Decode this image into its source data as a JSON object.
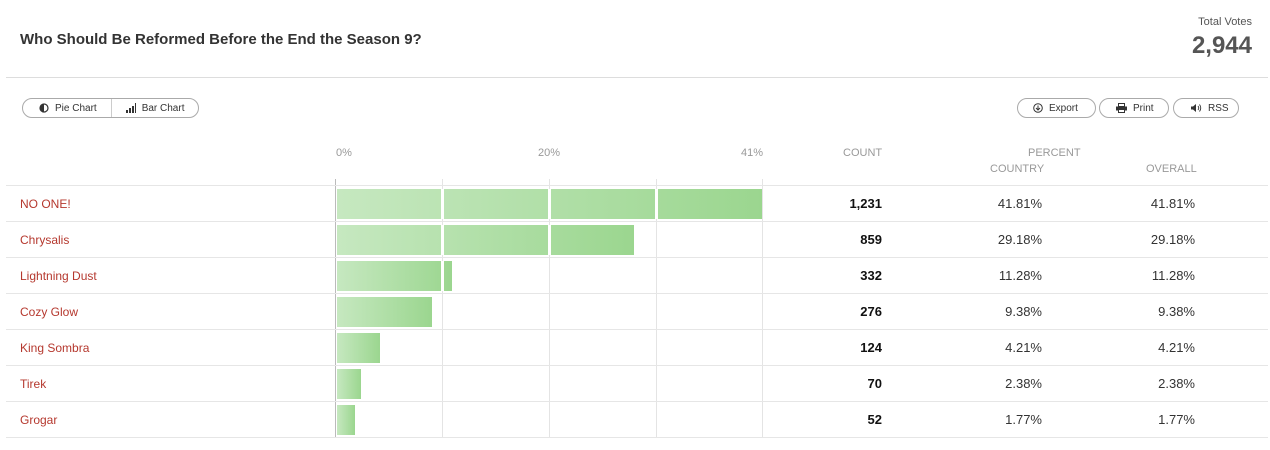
{
  "header": {
    "title": "Who Should Be Reformed Before the End the Season 9?",
    "total_votes_label": "Total Votes",
    "total_votes": "2,944"
  },
  "view_buttons": {
    "pie": "Pie Chart",
    "bar": "Bar Chart"
  },
  "actions": {
    "export": "Export",
    "print": "Print",
    "rss": "RSS"
  },
  "columns": {
    "count": "COUNT",
    "percent": "PERCENT",
    "country": "COUNTRY",
    "overall": "OVERALL"
  },
  "colors": {
    "label": "#b5382e",
    "bar_light": "#c6e8c0",
    "bar_dark": "#9bd68f"
  },
  "chart_data": {
    "type": "bar",
    "orientation": "horizontal",
    "categories": [
      "NO ONE!",
      "Chrysalis",
      "Lightning Dust",
      "Cozy Glow",
      "King Sombra",
      "Tirek",
      "Grogar"
    ],
    "values": [
      1231,
      859,
      332,
      276,
      124,
      70,
      52
    ],
    "count_labels": [
      "1,231",
      "859",
      "332",
      "276",
      "124",
      "70",
      "52"
    ],
    "percent_country": [
      "41.81%",
      "29.18%",
      "11.28%",
      "9.38%",
      "4.21%",
      "2.38%",
      "1.77%"
    ],
    "percent_overall": [
      "41.81%",
      "29.18%",
      "11.28%",
      "9.38%",
      "4.21%",
      "2.38%",
      "1.77%"
    ],
    "percent_values": [
      41.81,
      29.18,
      11.28,
      9.38,
      4.21,
      2.38,
      1.77
    ],
    "x_ticks": [
      "0%",
      "20%",
      "41%"
    ],
    "xlim": [
      0,
      41.81
    ]
  }
}
